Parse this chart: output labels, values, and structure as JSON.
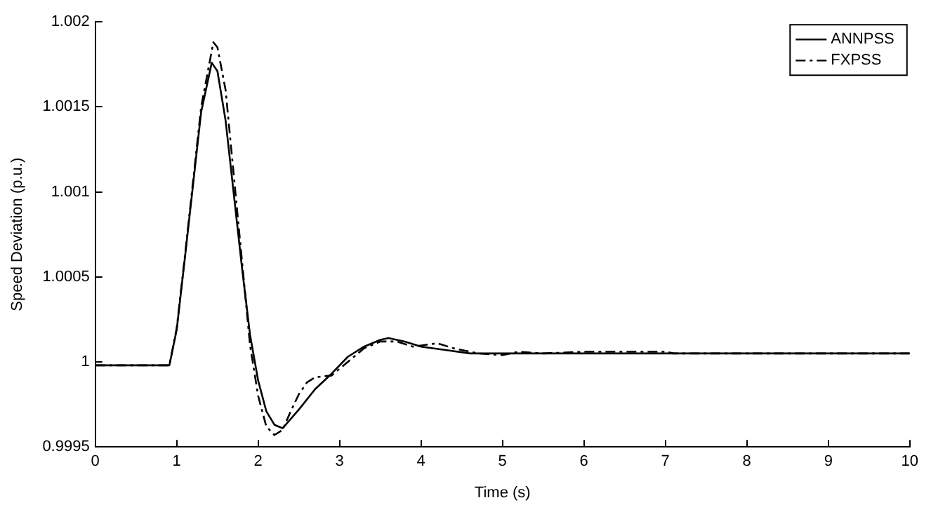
{
  "chart_data": {
    "type": "line",
    "xlabel": "Time (s)",
    "ylabel": "Speed Deviation (p.u.)",
    "xlim": [
      0,
      10
    ],
    "xticks": [
      0,
      1,
      2,
      3,
      4,
      5,
      6,
      7,
      8,
      9,
      10
    ],
    "ylim": [
      0.9995,
      1.002
    ],
    "yticks": [
      0.9995,
      1,
      1.0005,
      1.001,
      1.0015,
      1.002
    ],
    "grid": false,
    "legend": "top right",
    "marker": "none",
    "series": [
      {
        "name": "ANNPSS",
        "color": "#000000",
        "line_style": "solid",
        "x": [
          0,
          0.5,
          0.91,
          1.0,
          1.1,
          1.2,
          1.3,
          1.43,
          1.5,
          1.6,
          1.7,
          1.8,
          1.9,
          2.0,
          2.1,
          2.2,
          2.3,
          2.5,
          2.7,
          2.9,
          3.1,
          3.3,
          3.5,
          3.6,
          3.8,
          4.0,
          4.3,
          4.6,
          5,
          6,
          7,
          8,
          9,
          10
        ],
        "values": [
          0.99998,
          0.99998,
          0.99998,
          1.00019,
          1.00061,
          1.00104,
          1.00147,
          1.00176,
          1.00171,
          1.00142,
          1.00099,
          1.00056,
          1.00016,
          0.99989,
          0.99971,
          0.99963,
          0.99961,
          0.99972,
          0.99984,
          0.99993,
          1.00003,
          1.00009,
          1.00013,
          1.00014,
          1.00012,
          1.00009,
          1.00007,
          1.00005,
          1.00005,
          1.00005,
          1.00005,
          1.00005,
          1.00005,
          1.00005
        ]
      },
      {
        "name": "FXPSS",
        "color": "#000000",
        "line_style": "dashed",
        "x": [
          0,
          0.5,
          0.91,
          1.0,
          1.1,
          1.2,
          1.3,
          1.45,
          1.5,
          1.6,
          1.7,
          1.8,
          1.9,
          2.0,
          2.1,
          2.2,
          2.3,
          2.4,
          2.5,
          2.6,
          2.7,
          2.9,
          3.1,
          3.3,
          3.5,
          3.7,
          3.9,
          4.2,
          4.4,
          4.7,
          5.0,
          5.2,
          5.5,
          6,
          7,
          7.1,
          8,
          9,
          10
        ],
        "values": [
          0.99998,
          0.99998,
          0.99998,
          1.0002,
          1.00062,
          1.00106,
          1.0015,
          1.00188,
          1.00185,
          1.0016,
          1.0011,
          1.0006,
          1.0001,
          0.9998,
          0.99962,
          0.99957,
          0.9996,
          0.99971,
          0.99981,
          0.99988,
          0.99991,
          0.99992,
          1.0,
          1.00008,
          1.00012,
          1.00012,
          1.00009,
          1.00011,
          1.00008,
          1.00005,
          1.00004,
          1.00006,
          1.00005,
          1.00006,
          1.00006,
          1.00005,
          1.00005,
          1.00005,
          1.00005
        ]
      }
    ]
  }
}
